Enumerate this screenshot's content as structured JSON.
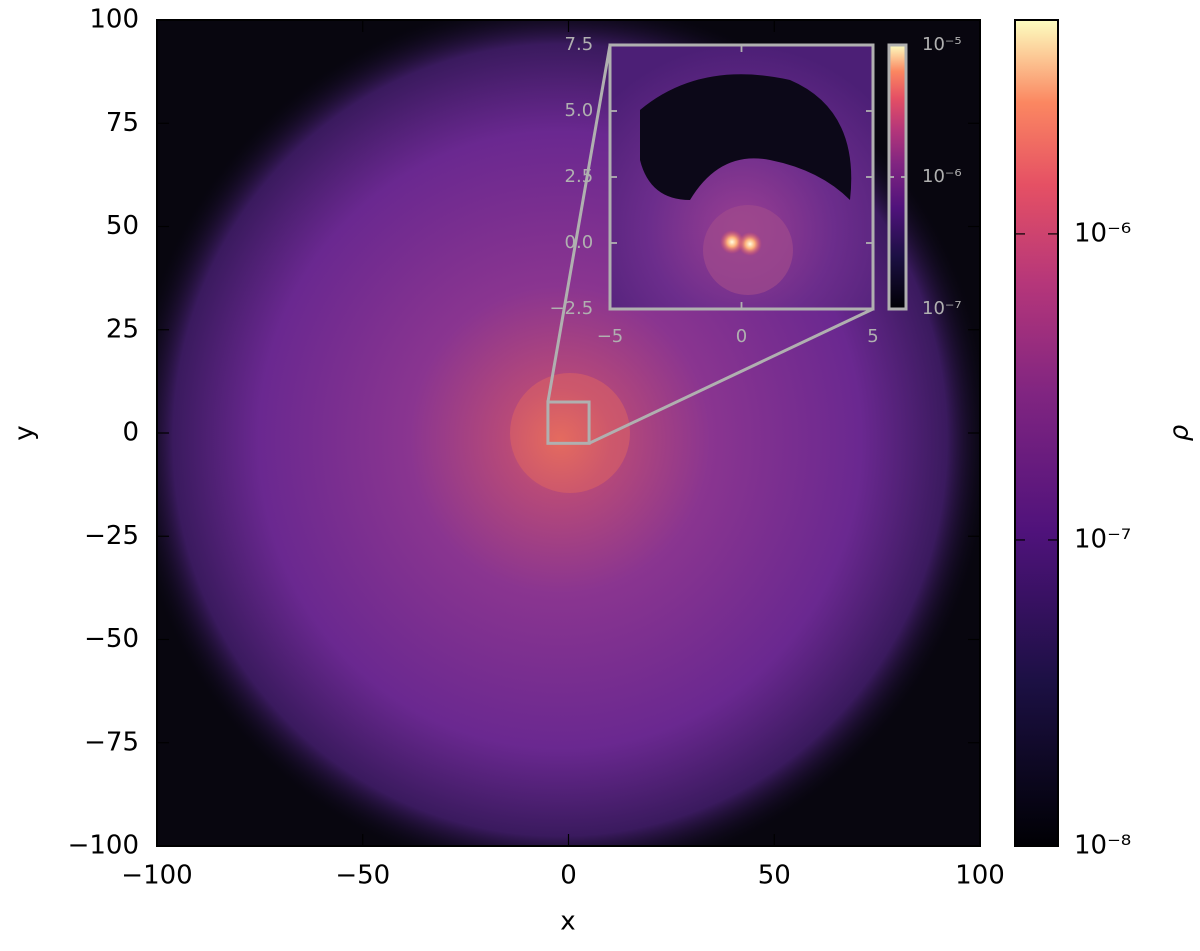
{
  "chart_data": {
    "type": "image",
    "xlabel": "x",
    "ylabel": "y",
    "xlim": [
      -100,
      100
    ],
    "ylim": [
      -100,
      100
    ],
    "xticks": [
      {
        "value": -100,
        "label": "−100"
      },
      {
        "value": -50,
        "label": "−50"
      },
      0,
      50,
      100
    ],
    "yticks": [
      {
        "value": -100,
        "label": "−100"
      },
      {
        "value": -75,
        "label": "−75"
      },
      {
        "value": -50,
        "label": "−50"
      },
      {
        "value": -25,
        "label": "−25"
      },
      0,
      25,
      50,
      75,
      100
    ],
    "colormap": "magma",
    "colorbar": {
      "label": "ρ",
      "log": true,
      "lim": [
        1e-08,
        5e-06
      ],
      "ticks": [
        {
          "value": 1e-08,
          "label": "10⁻⁸"
        },
        {
          "value": 1e-07,
          "label": "10⁻⁷"
        },
        {
          "value": 1e-06,
          "label": "10⁻⁶"
        }
      ]
    },
    "inset": {
      "xlim": [
        -5,
        5
      ],
      "ylim": [
        -2.5,
        7.5
      ],
      "xticks": [
        {
          "value": -5,
          "label": "−5"
        },
        0,
        5
      ],
      "yticks": [
        {
          "value": -2.5,
          "label": "−2.5"
        },
        {
          "value": 0,
          "label": "0.0"
        },
        2.5,
        {
          "value": 5,
          "label": "5.0"
        },
        7.5
      ],
      "colorbar": {
        "log": true,
        "lim": [
          1e-07,
          1e-05
        ],
        "ticks": [
          {
            "value": 1e-07,
            "label": "10⁻⁷"
          },
          {
            "value": 1e-06,
            "label": "10⁻⁶"
          },
          {
            "value": 1e-05,
            "label": "10⁻⁵"
          }
        ]
      }
    }
  }
}
